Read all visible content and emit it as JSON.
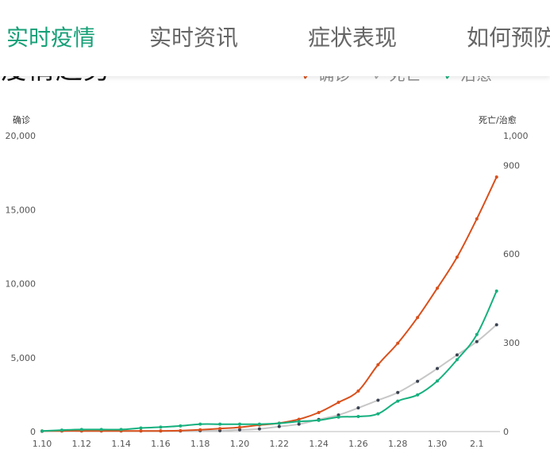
{
  "nav": {
    "tabs": [
      {
        "label": "实时疫情",
        "active": true
      },
      {
        "label": "实时资讯",
        "active": false
      },
      {
        "label": "症状表现",
        "active": false
      },
      {
        "label": "如何预防",
        "active": false
      }
    ]
  },
  "section": {
    "title": "疫情趋势"
  },
  "colors": {
    "accent": "#17a077",
    "confirmed": "#d9501c",
    "deaths": "#c7c7c7",
    "deaths_marker": "#3a4250",
    "recovered": "#16b07e"
  },
  "chart_data": {
    "type": "line",
    "categories": [
      "1.10",
      "1.11",
      "1.12",
      "1.13",
      "1.14",
      "1.15",
      "1.16",
      "1.17",
      "1.18",
      "1.19",
      "1.20",
      "1.21",
      "1.22",
      "1.23",
      "1.24",
      "1.25",
      "1.26",
      "1.27",
      "1.28",
      "1.29",
      "1.30",
      "1.31",
      "2.1",
      "2.2"
    ],
    "x_tick_labels": [
      "1.10",
      "1.12",
      "1.14",
      "1.16",
      "1.18",
      "1.20",
      "1.22",
      "1.24",
      "1.26",
      "1.28",
      "1.30",
      "2.1"
    ],
    "left_axis": {
      "title": "确诊",
      "ylim": [
        0,
        20000
      ],
      "tick_labels": [
        "0",
        "5,000",
        "10,000",
        "15,000",
        "20,000"
      ]
    },
    "right_axis": {
      "title": "死亡/治愈",
      "ylim": [
        0,
        1000
      ],
      "tick_labels": [
        "0",
        "300",
        "600",
        "900",
        "1,000"
      ]
    },
    "series": [
      {
        "name": "确诊",
        "axis": "left",
        "values": [
          41,
          45,
          45,
          45,
          45,
          45,
          45,
          62,
          121,
          198,
          291,
          440,
          571,
          830,
          1287,
          1975,
          2744,
          4515,
          5974,
          7711,
          9692,
          11791,
          14380,
          17205
        ]
      },
      {
        "name": "死亡",
        "axis": "right",
        "values": [
          1,
          2,
          2,
          2,
          2,
          2,
          2,
          2,
          3,
          3,
          6,
          9,
          17,
          25,
          41,
          56,
          80,
          106,
          132,
          170,
          213,
          259,
          304,
          361
        ]
      },
      {
        "name": "治愈",
        "axis": "right",
        "values": [
          2,
          5,
          7,
          7,
          7,
          12,
          15,
          19,
          25,
          25,
          25,
          25,
          28,
          34,
          38,
          49,
          51,
          60,
          103,
          124,
          171,
          243,
          328,
          475
        ]
      }
    ],
    "grid": false,
    "legend_position": "top-right"
  }
}
